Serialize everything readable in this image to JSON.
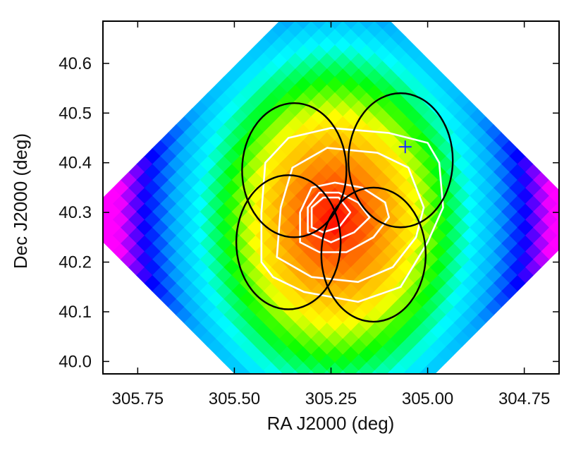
{
  "chart_data": {
    "type": "heatmap",
    "title": "",
    "xlabel": "RA J2000 (deg)",
    "ylabel": "Dec J2000 (deg)",
    "xlim": [
      305.84,
      304.66
    ],
    "ylim": [
      39.975,
      40.685
    ],
    "x_ticks": [
      {
        "value": 305.75,
        "label": "305.75"
      },
      {
        "value": 305.5,
        "label": "305.50"
      },
      {
        "value": 305.25,
        "label": "305.25"
      },
      {
        "value": 305.0,
        "label": "305.00"
      },
      {
        "value": 304.75,
        "label": "304.75"
      }
    ],
    "y_ticks": [
      {
        "value": 40.0,
        "label": "40.0"
      },
      {
        "value": 40.1,
        "label": "40.1"
      },
      {
        "value": 40.2,
        "label": "40.2"
      },
      {
        "value": 40.3,
        "label": "40.3"
      },
      {
        "value": 40.4,
        "label": "40.4"
      },
      {
        "value": 40.5,
        "label": "40.5"
      },
      {
        "value": 40.6,
        "label": "40.6"
      }
    ],
    "map": {
      "pixel_size_deg": 0.0226,
      "rotation_deg": 45,
      "peak": {
        "ra": 305.24,
        "dec": 40.285
      },
      "colormap": [
        "#ff00ff",
        "#0000ff",
        "#00aaff",
        "#00ffff",
        "#00ff00",
        "#ffff00",
        "#ffaa00",
        "#ff5500",
        "#ff0000"
      ]
    },
    "fields": [
      {
        "name": "field-1",
        "ra": 305.345,
        "dec": 40.385,
        "radius_deg": 0.135
      },
      {
        "name": "field-2",
        "ra": 305.07,
        "dec": 40.405,
        "radius_deg": 0.135
      },
      {
        "name": "field-3",
        "ra": 305.36,
        "dec": 40.24,
        "radius_deg": 0.135
      },
      {
        "name": "field-4",
        "ra": 305.14,
        "dec": 40.215,
        "radius_deg": 0.135
      }
    ],
    "contours": [
      {
        "level": 1,
        "points": [
          [
            305.43,
            40.2
          ],
          [
            305.43,
            40.3
          ],
          [
            305.42,
            40.4
          ],
          [
            305.36,
            40.45
          ],
          [
            305.25,
            40.47
          ],
          [
            305.1,
            40.46
          ],
          [
            305.0,
            40.44
          ],
          [
            304.97,
            40.4
          ],
          [
            304.96,
            40.31
          ],
          [
            305.0,
            40.24
          ],
          [
            305.07,
            40.15
          ],
          [
            305.18,
            40.12
          ],
          [
            305.32,
            40.14
          ],
          [
            305.4,
            40.17
          ]
        ]
      },
      {
        "level": 2,
        "points": [
          [
            305.39,
            40.21
          ],
          [
            305.38,
            40.31
          ],
          [
            305.35,
            40.39
          ],
          [
            305.26,
            40.43
          ],
          [
            305.13,
            40.42
          ],
          [
            305.05,
            40.39
          ],
          [
            305.01,
            40.31
          ],
          [
            305.03,
            40.25
          ],
          [
            305.09,
            40.19
          ],
          [
            305.18,
            40.16
          ],
          [
            305.3,
            40.17
          ]
        ]
      },
      {
        "level": 3,
        "points": [
          [
            305.33,
            40.24
          ],
          [
            305.33,
            40.3
          ],
          [
            305.3,
            40.35
          ],
          [
            305.24,
            40.36
          ],
          [
            305.17,
            40.35
          ],
          [
            305.11,
            40.32
          ],
          [
            305.1,
            40.29
          ],
          [
            305.14,
            40.25
          ],
          [
            305.21,
            40.22
          ],
          [
            305.28,
            40.22
          ]
        ]
      },
      {
        "level": 4,
        "points": [
          [
            305.31,
            40.26
          ],
          [
            305.31,
            40.31
          ],
          [
            305.28,
            40.34
          ],
          [
            305.23,
            40.34
          ],
          [
            305.18,
            40.32
          ],
          [
            305.15,
            40.29
          ],
          [
            305.19,
            40.26
          ],
          [
            305.25,
            40.24
          ]
        ]
      },
      {
        "level": 5,
        "points": [
          [
            305.3,
            40.27
          ],
          [
            305.3,
            40.31
          ],
          [
            305.27,
            40.33
          ],
          [
            305.23,
            40.33
          ],
          [
            305.2,
            40.3
          ],
          [
            305.23,
            40.27
          ],
          [
            305.27,
            40.26
          ]
        ]
      }
    ],
    "markers": [
      {
        "name": "source-cross",
        "ra": 305.058,
        "dec": 40.432,
        "symbol": "+",
        "color": "#1a2cff"
      }
    ],
    "colors": {
      "circle": "#000000",
      "contour": "#ffffff",
      "frame": "#000000",
      "background": "#ffffff"
    }
  }
}
